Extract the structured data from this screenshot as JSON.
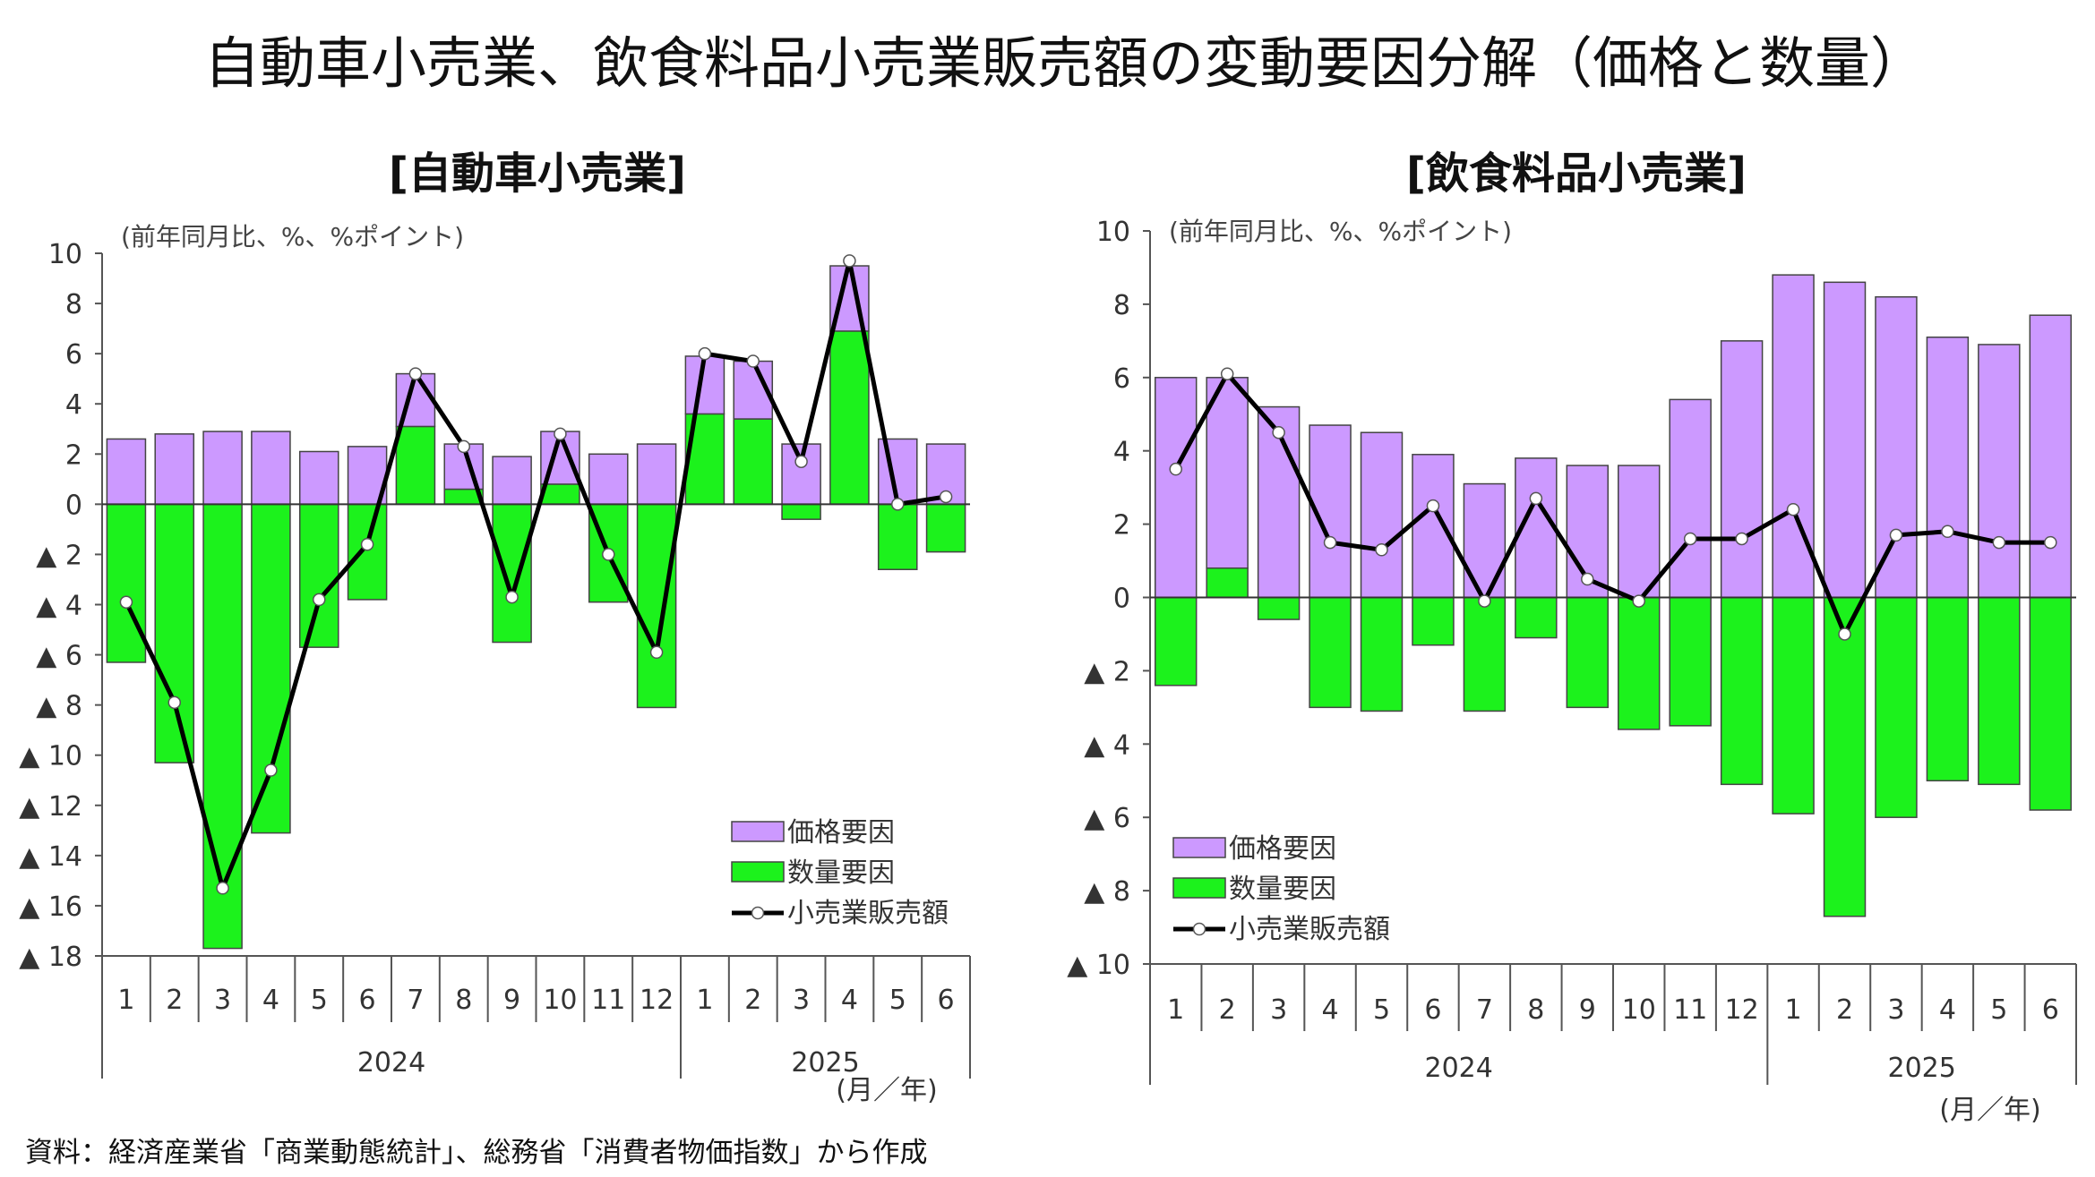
{
  "title": "自動車小売業、飲食料品小売業販売額の変動要因分解（価格と数量）",
  "source_note": "資料：経済産業省「商業動態統計」、総務省「消費者物価指数」から作成",
  "colors": {
    "price": "#cc99ff",
    "volume": "#1cf21c",
    "line": "#000000",
    "marker": "#ffffff"
  },
  "chart_data": [
    {
      "type": "bar",
      "stacked": true,
      "title": "[自動車小売業]",
      "unit_label": "(前年同月比、%、%ポイント)",
      "x_unit_label": "(月／年)",
      "ylim": [
        -18,
        10
      ],
      "yticks": [
        10,
        8,
        6,
        4,
        2,
        0,
        -2,
        -4,
        -6,
        -8,
        -10,
        -12,
        -14,
        -16,
        -18
      ],
      "ytick_labels": [
        "10",
        "8",
        "6",
        "4",
        "2",
        "0",
        "▲ 2",
        "▲ 4",
        "▲ 6",
        "▲ 8",
        "▲ 10",
        "▲ 12",
        "▲ 14",
        "▲ 16",
        "▲ 18"
      ],
      "categories": [
        "1",
        "2",
        "3",
        "4",
        "5",
        "6",
        "7",
        "8",
        "9",
        "10",
        "11",
        "12",
        "1",
        "2",
        "3",
        "4",
        "5",
        "6"
      ],
      "years": [
        {
          "label": "2024",
          "count": 12
        },
        {
          "label": "2025",
          "count": 6
        }
      ],
      "legend": "bottom-right",
      "series": [
        {
          "name": "価格要因",
          "kind": "bar",
          "values": [
            2.6,
            2.8,
            2.9,
            2.9,
            2.1,
            2.3,
            2.1,
            1.8,
            1.9,
            2.1,
            2.0,
            2.4,
            2.3,
            2.3,
            2.4,
            2.6,
            2.6,
            2.4
          ]
        },
        {
          "name": "数量要因",
          "kind": "bar",
          "values": [
            -6.3,
            -10.3,
            -17.7,
            -13.1,
            -5.7,
            -3.8,
            3.1,
            0.6,
            -5.5,
            0.8,
            -3.9,
            -8.1,
            3.6,
            3.4,
            -0.6,
            6.9,
            -2.6,
            -1.9
          ]
        },
        {
          "name": "小売業販売額",
          "kind": "line",
          "values": [
            -3.9,
            -7.9,
            -15.3,
            -10.6,
            -3.8,
            -1.6,
            5.2,
            2.3,
            -3.7,
            2.8,
            -2.0,
            -5.9,
            6.0,
            5.7,
            1.7,
            9.7,
            0.0,
            0.3
          ]
        }
      ]
    },
    {
      "type": "bar",
      "stacked": true,
      "title": "[飲食料品小売業]",
      "unit_label": "(前年同月比、%、%ポイント)",
      "x_unit_label": "(月／年)",
      "ylim": [
        -10,
        10
      ],
      "yticks": [
        10,
        8,
        6,
        4,
        2,
        0,
        -2,
        -4,
        -6,
        -8,
        -10
      ],
      "ytick_labels": [
        "10",
        "8",
        "6",
        "4",
        "2",
        "0",
        "▲ 2",
        "▲ 4",
        "▲ 6",
        "▲ 8",
        "▲ 10"
      ],
      "categories": [
        "1",
        "2",
        "3",
        "4",
        "5",
        "6",
        "7",
        "8",
        "9",
        "10",
        "11",
        "12",
        "1",
        "2",
        "3",
        "4",
        "5",
        "6"
      ],
      "years": [
        {
          "label": "2024",
          "count": 12
        },
        {
          "label": "2025",
          "count": 6
        }
      ],
      "legend": "bottom-left",
      "series": [
        {
          "name": "価格要因",
          "kind": "bar",
          "values": [
            6.0,
            5.2,
            5.2,
            4.7,
            4.5,
            3.9,
            3.1,
            3.8,
            3.6,
            3.6,
            5.4,
            7.0,
            8.8,
            8.6,
            8.2,
            7.1,
            6.9,
            7.7
          ]
        },
        {
          "name": "数量要因",
          "kind": "bar",
          "values": [
            -2.4,
            0.8,
            -0.6,
            -3.0,
            -3.1,
            -1.3,
            -3.1,
            -1.1,
            -3.0,
            -3.6,
            -3.5,
            -5.1,
            -5.9,
            -8.7,
            -6.0,
            -5.0,
            -5.1,
            -5.8
          ]
        },
        {
          "name": "小売業販売額",
          "kind": "line",
          "values": [
            3.5,
            6.1,
            4.5,
            1.5,
            1.3,
            2.5,
            -0.1,
            2.7,
            0.5,
            -0.1,
            1.6,
            1.6,
            2.4,
            -1.0,
            1.7,
            1.8,
            1.5,
            1.5
          ]
        }
      ]
    }
  ]
}
